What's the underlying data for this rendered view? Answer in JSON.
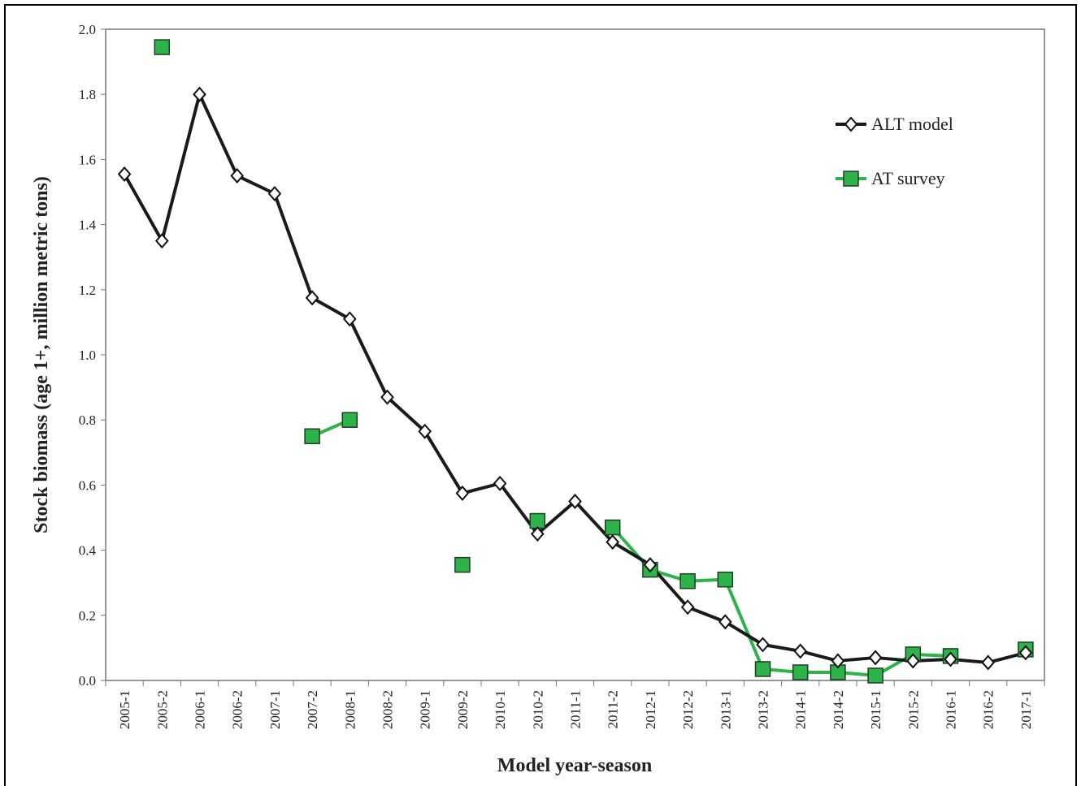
{
  "chart_data": {
    "type": "line",
    "xlabel": "Model year-season",
    "ylabel": "Stock biomass (age 1+, million metric tons)",
    "categories": [
      "2005-1",
      "2005-2",
      "2006-1",
      "2006-2",
      "2007-1",
      "2007-2",
      "2008-1",
      "2008-2",
      "2009-1",
      "2009-2",
      "2010-1",
      "2010-2",
      "2011-1",
      "2011-2",
      "2012-1",
      "2012-2",
      "2013-1",
      "2013-2",
      "2014-1",
      "2014-2",
      "2015-1",
      "2015-2",
      "2016-1",
      "2016-2",
      "2017-1"
    ],
    "series": [
      {
        "name": "ALT model",
        "color": "#1a1a1a",
        "marker": "diamond",
        "values": [
          1.555,
          1.35,
          1.8,
          1.55,
          1.495,
          1.175,
          1.11,
          0.87,
          0.765,
          0.575,
          0.605,
          0.45,
          0.55,
          0.425,
          0.355,
          0.225,
          0.18,
          0.11,
          0.09,
          0.06,
          0.07,
          0.06,
          0.065,
          0.055,
          0.085
        ]
      },
      {
        "name": "AT survey",
        "color": "#2eb34a",
        "marker": "square",
        "values": [
          null,
          1.945,
          null,
          null,
          null,
          0.75,
          0.8,
          null,
          null,
          0.355,
          null,
          0.49,
          null,
          0.47,
          0.34,
          0.305,
          0.31,
          0.035,
          0.025,
          0.025,
          0.015,
          0.08,
          0.075,
          null,
          0.095
        ]
      }
    ],
    "ylim": [
      0,
      2
    ],
    "yticks": [
      {
        "value": 0,
        "label": "0.0"
      },
      0.2,
      0.4,
      0.6,
      0.8,
      {
        "value": 1,
        "label": "1.0"
      },
      1.2,
      1.4,
      1.6,
      1.8,
      {
        "value": 2,
        "label": "2.0"
      }
    ],
    "legend": "upper right"
  }
}
